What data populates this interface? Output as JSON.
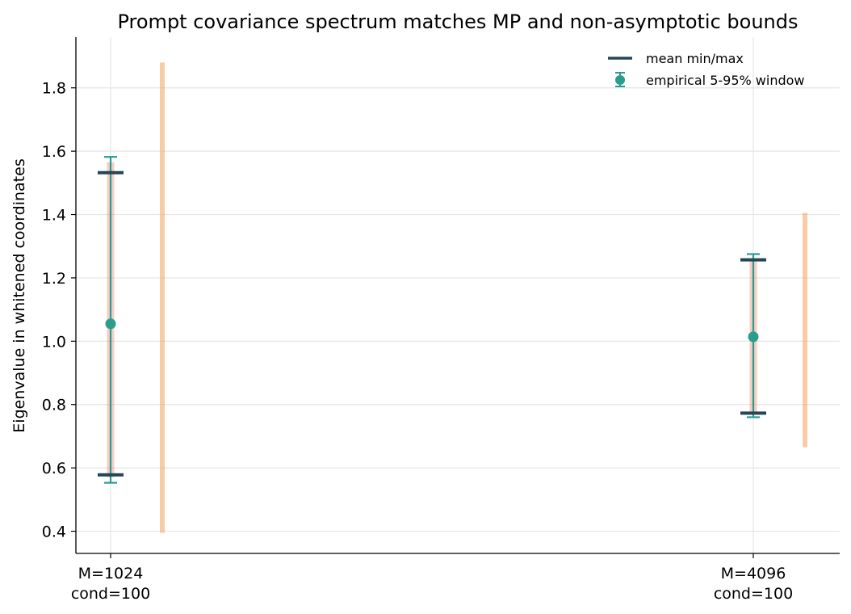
{
  "chart_data": {
    "type": "errorbar",
    "title": "Prompt covariance spectrum matches MP and non-asymptotic bounds",
    "xlabel": "",
    "ylabel": "Eigenvalue in whitened coordinates",
    "ylim": [
      0.33,
      1.96
    ],
    "yticks": [
      0.4,
      0.6,
      0.8,
      1.0,
      1.2,
      1.4,
      1.6,
      1.8
    ],
    "grid": true,
    "legend_position": "top-right",
    "categories": [
      {
        "line1": "M=1024",
        "line2": "cond=100"
      },
      {
        "line1": "M=4096",
        "line2": "cond=100"
      }
    ],
    "series": [
      {
        "name": "mean min/max",
        "color": "#264653",
        "values": [
          {
            "min": 0.578,
            "max": 1.532
          },
          {
            "min": 0.773,
            "max": 1.257
          }
        ]
      },
      {
        "name": "empirical 5-95% window",
        "color": "#2a9d8f",
        "values": [
          {
            "center": 1.055,
            "low": 0.553,
            "high": 1.582
          },
          {
            "center": 1.014,
            "low": 0.76,
            "high": 1.275
          }
        ]
      },
      {
        "color": "#f4a261",
        "values": [
          {
            "low": 0.395,
            "high": 1.88
          },
          {
            "low": 0.665,
            "high": 1.405
          }
        ]
      },
      {
        "color": "#e76f51",
        "values": [
          {
            "low": 0.57,
            "high": 1.565
          },
          {
            "low": 0.77,
            "high": 1.26
          }
        ]
      }
    ]
  }
}
